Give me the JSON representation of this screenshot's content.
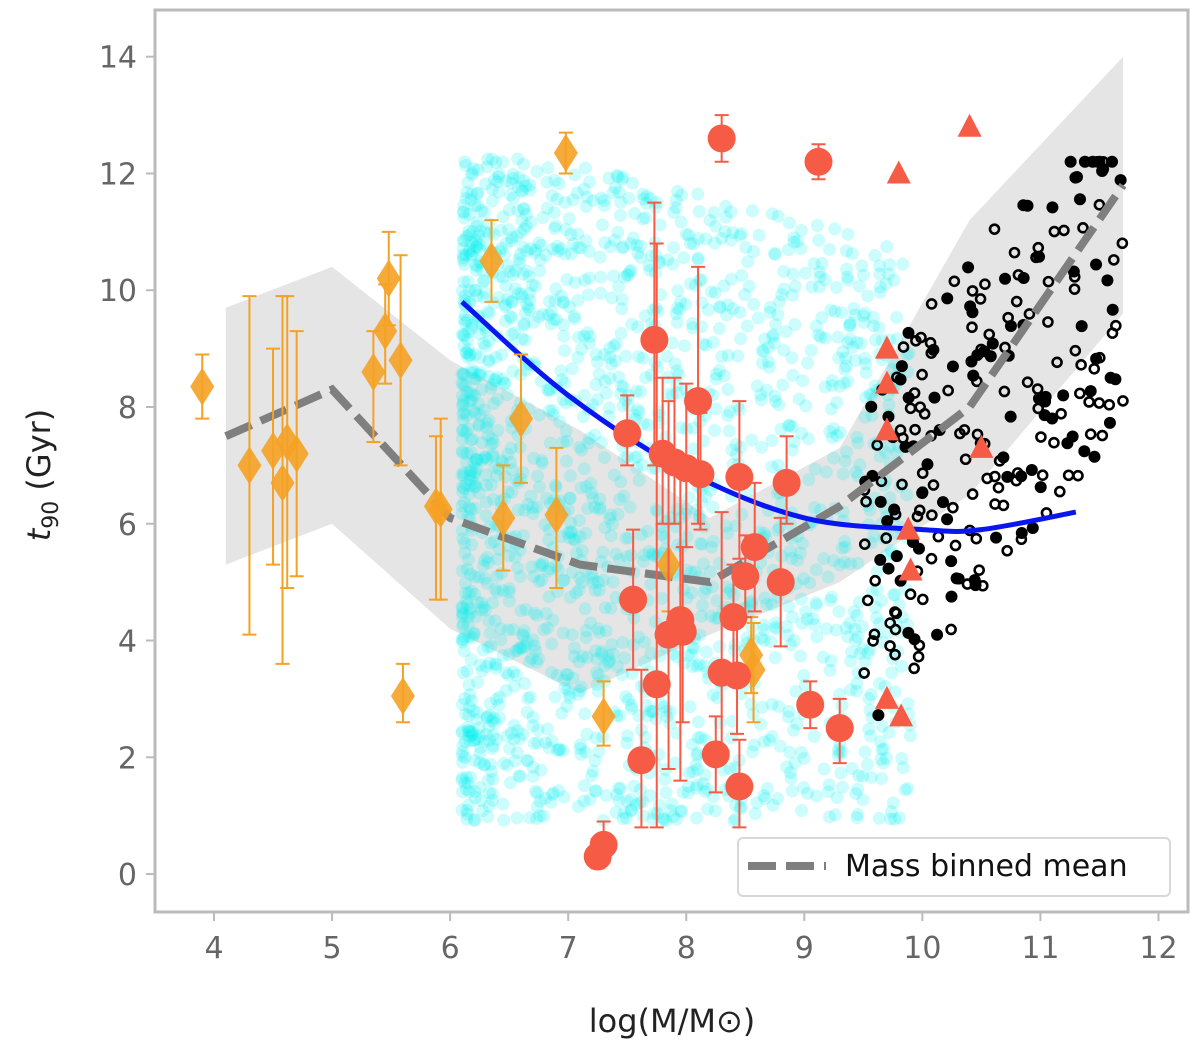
{
  "chart_data": {
    "type": "scatter",
    "xlabel": "log(M/M⊙)",
    "ylabel_main": "t",
    "ylabel_sub": "90",
    "ylabel_unit": " (Gyr)",
    "xlim": [
      3.5,
      12.25
    ],
    "ylim": [
      -0.65,
      14.8
    ],
    "x_ticks": [
      4,
      5,
      6,
      7,
      8,
      9,
      10,
      11,
      12
    ],
    "y_ticks": [
      0,
      2,
      4,
      6,
      8,
      10,
      12,
      14
    ],
    "grid": false,
    "legend_position": "lower-right",
    "colors": {
      "cyan": "#00f0f0",
      "orange": "#f5a123",
      "red": "#f55b45",
      "blue": "#0a16f0",
      "mean": "#7f7f7f",
      "band": "#e5e5e5",
      "black": "#000000",
      "frame": "#bbbbbb"
    },
    "series": [
      {
        "name": "Mass binned mean",
        "kind": "dashed-line",
        "x": [
          4.1,
          5.0,
          6.0,
          7.1,
          8.2,
          9.3,
          10.4,
          11.7
        ],
        "y": [
          7.5,
          8.3,
          6.1,
          5.3,
          5.0,
          6.3,
          8.0,
          11.8
        ]
      },
      {
        "kind": "band",
        "x": [
          4.1,
          5.0,
          6.0,
          7.1,
          8.2,
          9.3,
          10.4,
          11.7
        ],
        "lower": [
          5.3,
          6.0,
          4.2,
          3.1,
          4.1,
          5.0,
          6.5,
          9.6
        ],
        "upper": [
          9.7,
          10.4,
          8.8,
          7.6,
          6.1,
          7.3,
          11.2,
          14.0
        ]
      },
      {
        "kind": "fit-curve",
        "x": [
          6.1,
          7.0,
          8.0,
          9.0,
          10.0,
          10.5,
          11.3
        ],
        "y": [
          9.8,
          8.2,
          6.9,
          6.1,
          5.9,
          5.9,
          6.2
        ]
      },
      {
        "kind": "diamonds-errorbars",
        "points": [
          {
            "x": 3.9,
            "y": 8.35,
            "lo": 7.8,
            "hi": 8.9
          },
          {
            "x": 4.3,
            "y": 7.0,
            "lo": 4.1,
            "hi": 9.9
          },
          {
            "x": 4.5,
            "y": 7.25,
            "lo": 5.3,
            "hi": 9.0
          },
          {
            "x": 4.58,
            "y": 6.7,
            "lo": 3.6,
            "hi": 9.9
          },
          {
            "x": 4.62,
            "y": 7.4,
            "lo": 4.9,
            "hi": 9.9
          },
          {
            "x": 4.7,
            "y": 7.2,
            "lo": 5.1,
            "hi": 9.3
          },
          {
            "x": 5.35,
            "y": 8.6,
            "lo": 7.4,
            "hi": 9.3
          },
          {
            "x": 5.45,
            "y": 9.3,
            "lo": 8.4,
            "hi": 10.1
          },
          {
            "x": 5.48,
            "y": 10.2,
            "lo": 9.4,
            "hi": 11.0
          },
          {
            "x": 5.58,
            "y": 8.8,
            "lo": 7.0,
            "hi": 10.6
          },
          {
            "x": 5.6,
            "y": 3.05,
            "lo": 2.6,
            "hi": 3.6
          },
          {
            "x": 5.88,
            "y": 6.3,
            "lo": 4.7,
            "hi": 7.5
          },
          {
            "x": 5.92,
            "y": 6.25,
            "lo": 4.7,
            "hi": 7.8
          },
          {
            "x": 6.35,
            "y": 10.5,
            "lo": 9.8,
            "hi": 11.2
          },
          {
            "x": 6.45,
            "y": 6.1,
            "lo": 5.2,
            "hi": 7.0
          },
          {
            "x": 6.6,
            "y": 7.8,
            "lo": 6.7,
            "hi": 8.9
          },
          {
            "x": 6.9,
            "y": 6.15,
            "lo": 4.9,
            "hi": 7.3
          },
          {
            "x": 6.98,
            "y": 12.35,
            "lo": 12.0,
            "hi": 12.7
          },
          {
            "x": 7.3,
            "y": 2.7,
            "lo": 2.2,
            "hi": 3.3
          },
          {
            "x": 7.85,
            "y": 5.3,
            "lo": 4.5,
            "hi": 6.0
          },
          {
            "x": 8.55,
            "y": 3.75,
            "lo": 3.1,
            "hi": 4.4
          },
          {
            "x": 8.57,
            "y": 3.5,
            "lo": 2.6,
            "hi": 4.3
          }
        ]
      },
      {
        "kind": "circles-errorbars",
        "points": [
          {
            "x": 7.25,
            "y": 0.3,
            "lo": 0.1,
            "hi": 0.6
          },
          {
            "x": 7.3,
            "y": 0.5,
            "lo": 0.2,
            "hi": 0.9
          },
          {
            "x": 7.5,
            "y": 7.55,
            "lo": 7.0,
            "hi": 8.2
          },
          {
            "x": 7.55,
            "y": 4.7,
            "lo": 3.5,
            "hi": 5.9
          },
          {
            "x": 7.62,
            "y": 1.95,
            "lo": 0.8,
            "hi": 3.5
          },
          {
            "x": 7.73,
            "y": 9.15,
            "lo": 7.0,
            "hi": 11.5
          },
          {
            "x": 7.75,
            "y": 3.25,
            "lo": 0.8,
            "hi": 10.8
          },
          {
            "x": 7.8,
            "y": 7.2,
            "lo": 6.0,
            "hi": 8.5
          },
          {
            "x": 7.85,
            "y": 4.1,
            "lo": 1.8,
            "hi": 8.1
          },
          {
            "x": 7.9,
            "y": 7.05,
            "lo": 6.0,
            "hi": 8.5
          },
          {
            "x": 7.95,
            "y": 4.35,
            "lo": 1.6,
            "hi": 6.9
          },
          {
            "x": 7.97,
            "y": 4.15,
            "lo": 2.6,
            "hi": 5.6
          },
          {
            "x": 8.0,
            "y": 6.95,
            "lo": 5.6,
            "hi": 8.4
          },
          {
            "x": 8.1,
            "y": 8.1,
            "lo": 6.0,
            "hi": 10.4
          },
          {
            "x": 8.12,
            "y": 6.85,
            "lo": 5.9,
            "hi": 7.9
          },
          {
            "x": 8.25,
            "y": 2.05,
            "lo": 1.4,
            "hi": 2.7
          },
          {
            "x": 8.3,
            "y": 3.45,
            "lo": 2.1,
            "hi": 6.2
          },
          {
            "x": 8.3,
            "y": 12.6,
            "lo": 12.2,
            "hi": 13.0
          },
          {
            "x": 8.4,
            "y": 4.4,
            "lo": 3.5,
            "hi": 5.3
          },
          {
            "x": 8.43,
            "y": 3.4,
            "lo": 2.4,
            "hi": 4.4
          },
          {
            "x": 8.45,
            "y": 6.8,
            "lo": 5.4,
            "hi": 8.1
          },
          {
            "x": 8.45,
            "y": 1.5,
            "lo": 0.8,
            "hi": 2.3
          },
          {
            "x": 8.5,
            "y": 5.1,
            "lo": 4.4,
            "hi": 5.8
          },
          {
            "x": 8.58,
            "y": 5.6,
            "lo": 4.5,
            "hi": 6.7
          },
          {
            "x": 8.8,
            "y": 5.0,
            "lo": 3.9,
            "hi": 6.1
          },
          {
            "x": 8.85,
            "y": 6.7,
            "lo": 6.0,
            "hi": 7.5
          },
          {
            "x": 9.05,
            "y": 2.9,
            "lo": 2.5,
            "hi": 3.3
          },
          {
            "x": 9.12,
            "y": 12.2,
            "lo": 11.9,
            "hi": 12.5
          },
          {
            "x": 9.3,
            "y": 2.5,
            "lo": 1.9,
            "hi": 3.0
          }
        ]
      },
      {
        "kind": "triangles",
        "x": [
          9.8,
          10.4,
          9.7,
          9.7,
          9.7,
          10.5,
          9.88,
          9.9,
          9.7,
          9.82
        ],
        "y": [
          12.0,
          12.8,
          9.0,
          8.4,
          7.6,
          7.3,
          5.9,
          5.2,
          3.0,
          2.7
        ]
      }
    ]
  }
}
